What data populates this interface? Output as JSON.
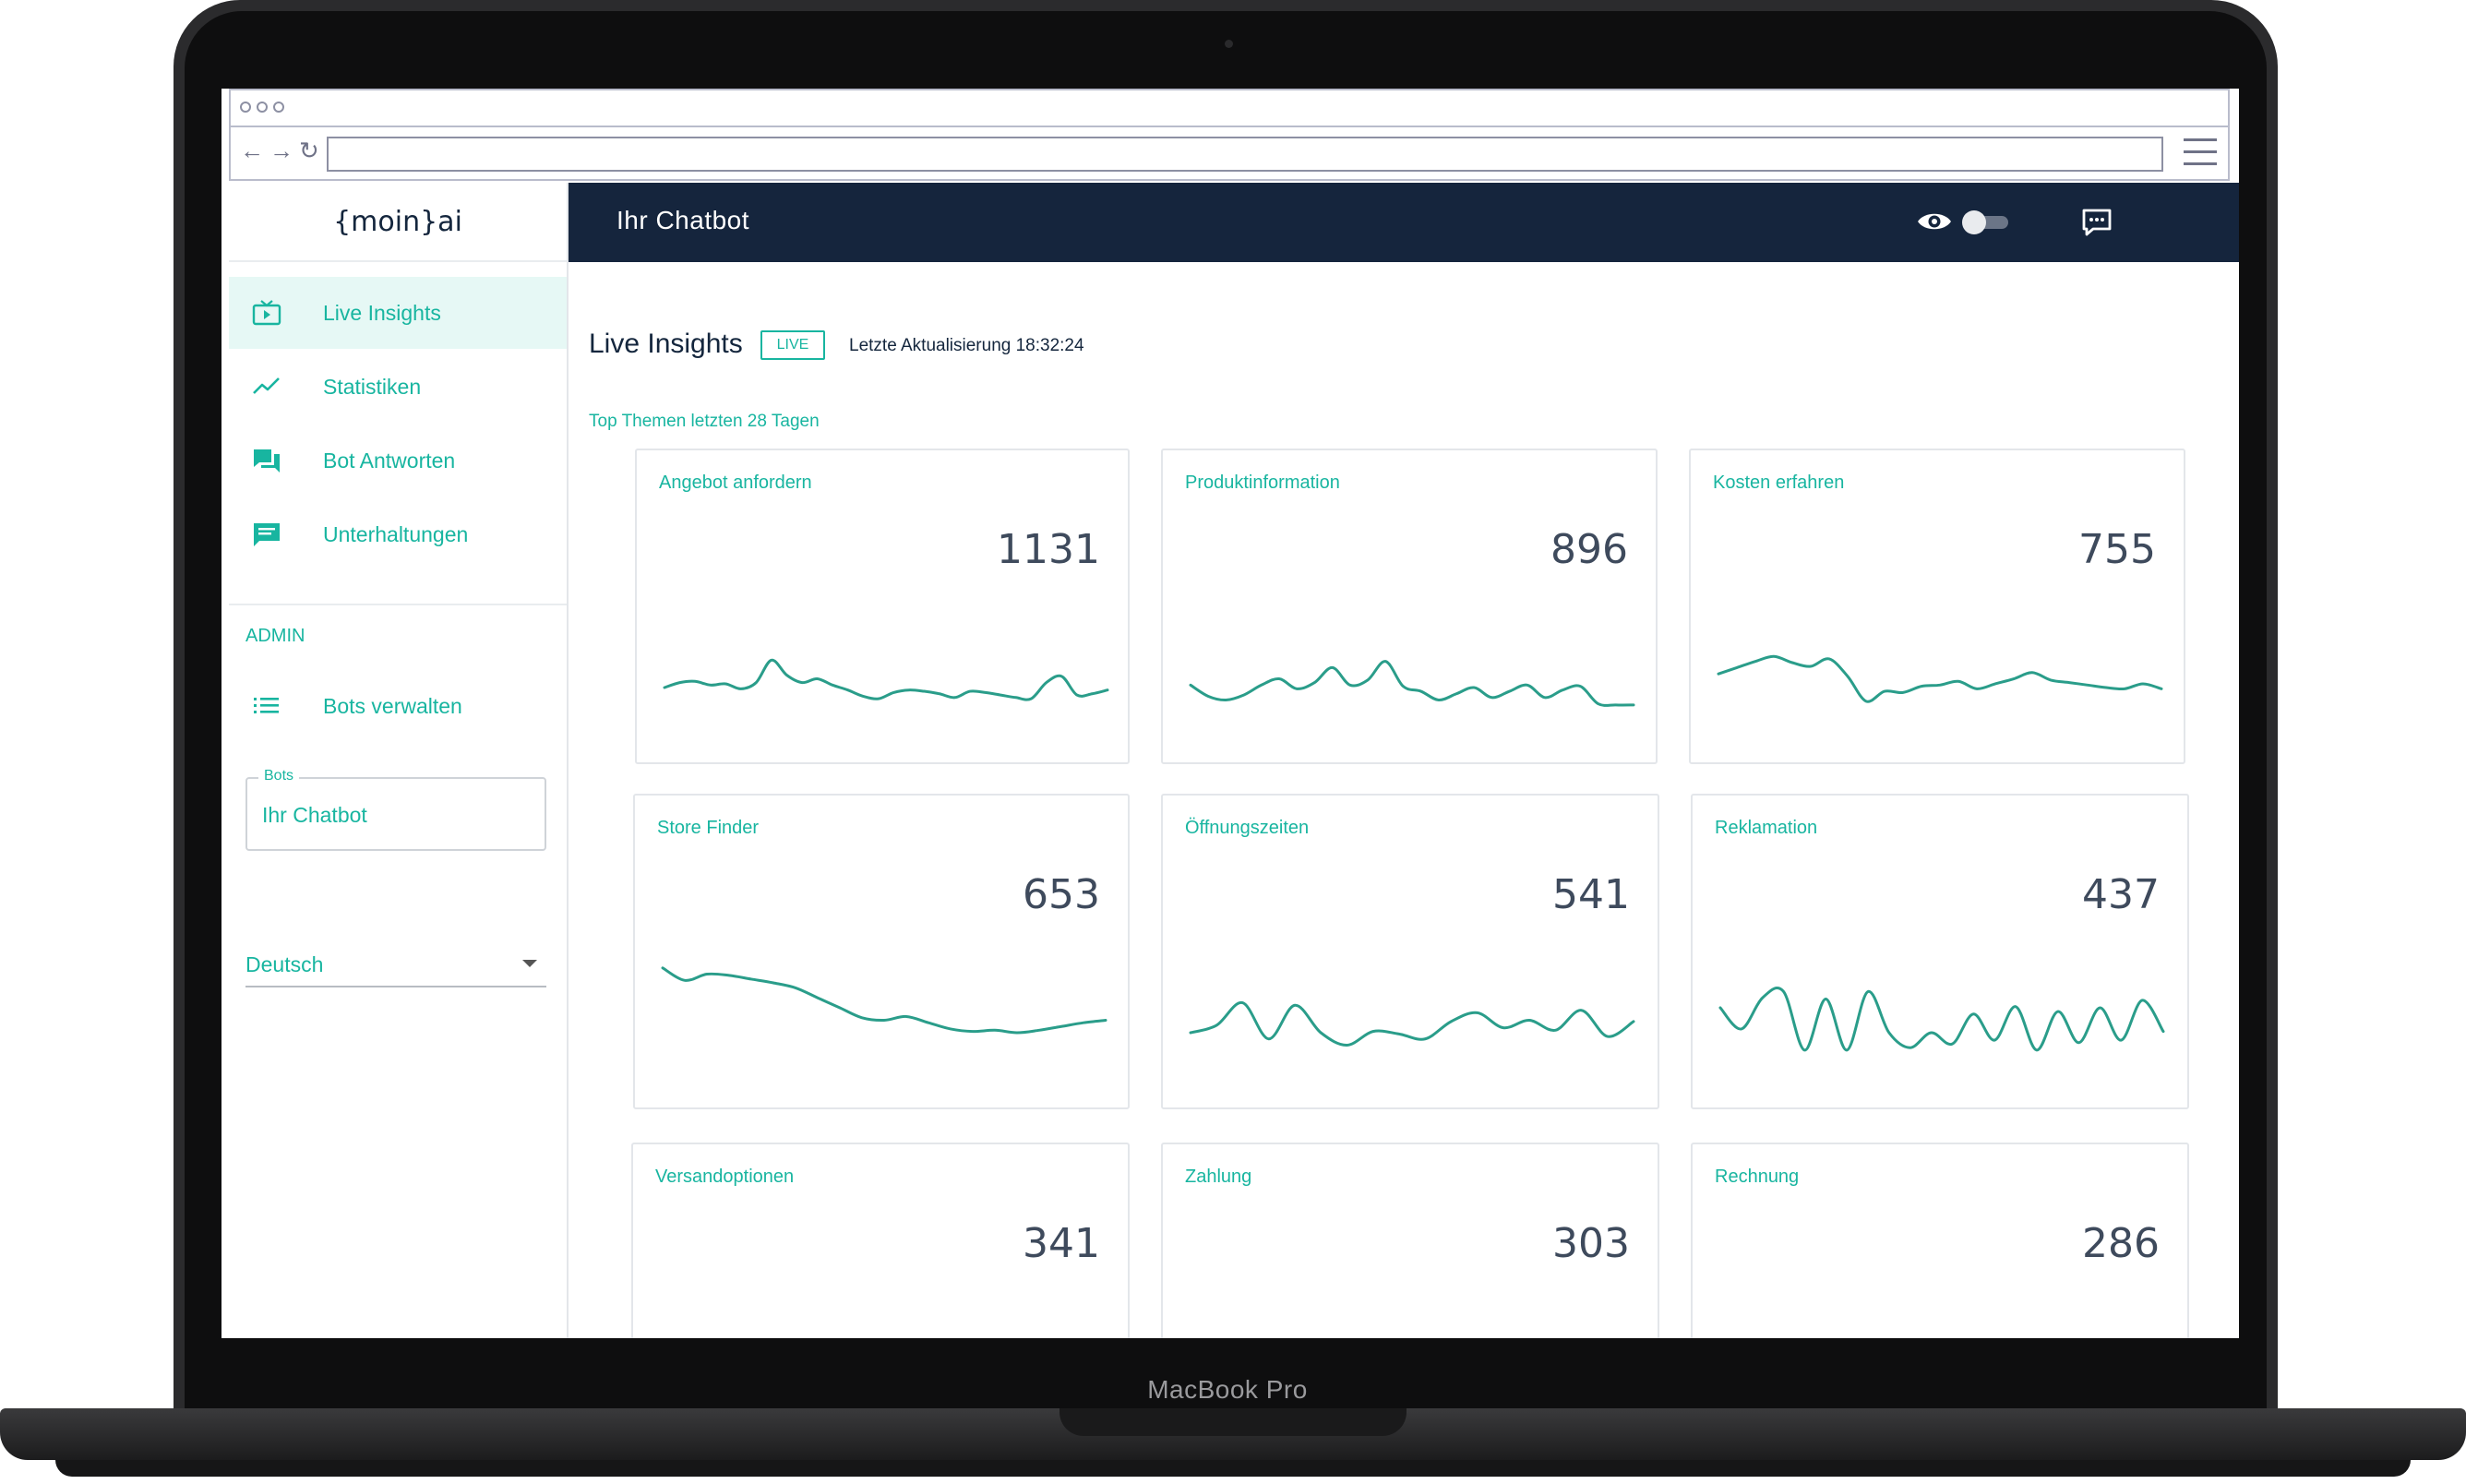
{
  "device": {
    "brand_label": "MacBook Pro"
  },
  "app": {
    "logo_text": "{moin}ai",
    "accent_color": "#18b5a0",
    "header_color": "#15253d"
  },
  "sidebar": {
    "items": [
      {
        "label": "Live Insights",
        "icon": "tv-play-icon",
        "active": true
      },
      {
        "label": "Statistiken",
        "icon": "trend-line-icon",
        "active": false
      },
      {
        "label": "Bot Antworten",
        "icon": "forum-icon",
        "active": false
      },
      {
        "label": "Unterhaltungen",
        "icon": "message-icon",
        "active": false
      }
    ],
    "admin_heading": "ADMIN",
    "admin_items": [
      {
        "label": "Bots verwalten",
        "icon": "list-icon"
      }
    ],
    "bots_field": {
      "legend": "Bots",
      "value": "Ihr Chatbot"
    },
    "language_select": {
      "value": "Deutsch"
    }
  },
  "header": {
    "title": "Ihr Chatbot",
    "icons": [
      "eye-icon",
      "toggle-switch",
      "chat-icon"
    ],
    "toggle_on": false
  },
  "main": {
    "page_title": "Live Insights",
    "live_badge": "LIVE",
    "last_update": "Letzte Aktualisierung 18:32:24",
    "section_title": "Top Themen letzten 28 Tagen",
    "topics": [
      {
        "name": "Angebot anfordern",
        "count": "1131",
        "trend": [
          20,
          24,
          25,
          22,
          23,
          19,
          24,
          42,
          30,
          24,
          27,
          22,
          18,
          13,
          11,
          16,
          18,
          17,
          15,
          12,
          17,
          16,
          14,
          12,
          11,
          24,
          29,
          14,
          15,
          18
        ]
      },
      {
        "name": "Produktinformation",
        "count": "896",
        "trend": [
          22,
          13,
          10,
          14,
          22,
          27,
          19,
          24,
          36,
          22,
          26,
          41,
          21,
          17,
          10,
          15,
          20,
          12,
          17,
          22,
          12,
          18,
          21,
          7,
          6,
          6
        ]
      },
      {
        "name": "Kosten erfahren",
        "count": "755",
        "trend": [
          31,
          36,
          41,
          45,
          40,
          37,
          43,
          29,
          9,
          17,
          16,
          21,
          22,
          25,
          19,
          23,
          27,
          32,
          26,
          24,
          22,
          20,
          19,
          23,
          19
        ]
      },
      {
        "name": "Store Finder",
        "count": "653",
        "trend": [
          72,
          62,
          67,
          66,
          63,
          60,
          56,
          48,
          40,
          32,
          30,
          33,
          28,
          23,
          21,
          22,
          20,
          22,
          25,
          28,
          30
        ]
      },
      {
        "name": "Öffnungszeiten",
        "count": "541",
        "trend": [
          20,
          26,
          44,
          15,
          42,
          20,
          10,
          21,
          19,
          15,
          29,
          36,
          24,
          30,
          22,
          38,
          17,
          29
        ]
      },
      {
        "name": "Reklamation",
        "count": "437",
        "trend": [
          40,
          23,
          48,
          53,
          6,
          47,
          6,
          53,
          20,
          8,
          20,
          11,
          35,
          14,
          41,
          6,
          37,
          12,
          40,
          14,
          46,
          21
        ]
      },
      {
        "name": "Versandoptionen",
        "count": "341",
        "trend": []
      },
      {
        "name": "Zahlung",
        "count": "303",
        "trend": []
      },
      {
        "name": "Rechnung",
        "count": "286",
        "trend": []
      }
    ]
  }
}
